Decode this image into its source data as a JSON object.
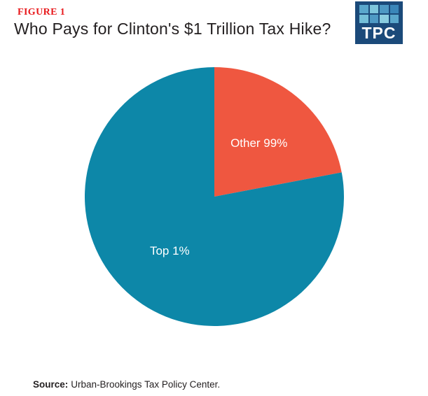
{
  "header": {
    "figure_label": "FIGURE 1",
    "title": "Who Pays for Clinton's $1 Trillion Tax Hike?"
  },
  "logo": {
    "text": "TPC",
    "background_color": "#1B4A7A",
    "tile_colors": [
      "#5AA7CC",
      "#7EC6DC",
      "#4E99C4",
      "#3A86B9",
      "#74BFD8",
      "#4E99C4",
      "#8ACDE0",
      "#5AA7CC"
    ]
  },
  "chart_data": {
    "type": "pie",
    "title": "Who Pays for Clinton's $1 Trillion Tax Hike?",
    "slices": [
      {
        "label": "Other 99%",
        "value": 22,
        "color": "#EF5740"
      },
      {
        "label": "Top 1%",
        "value": 78,
        "color": "#0D87A8"
      }
    ],
    "start_angle_deg": 0,
    "direction": "clockwise",
    "label_color": "#FFFFFF",
    "legend": "none",
    "grid": "off"
  },
  "footer": {
    "source_label": "Source:",
    "source_text": "Urban-Brookings Tax Policy Center."
  },
  "colors": {
    "figure_label": "#E8191C",
    "title_text": "#231F20",
    "source_text": "#231F20"
  }
}
